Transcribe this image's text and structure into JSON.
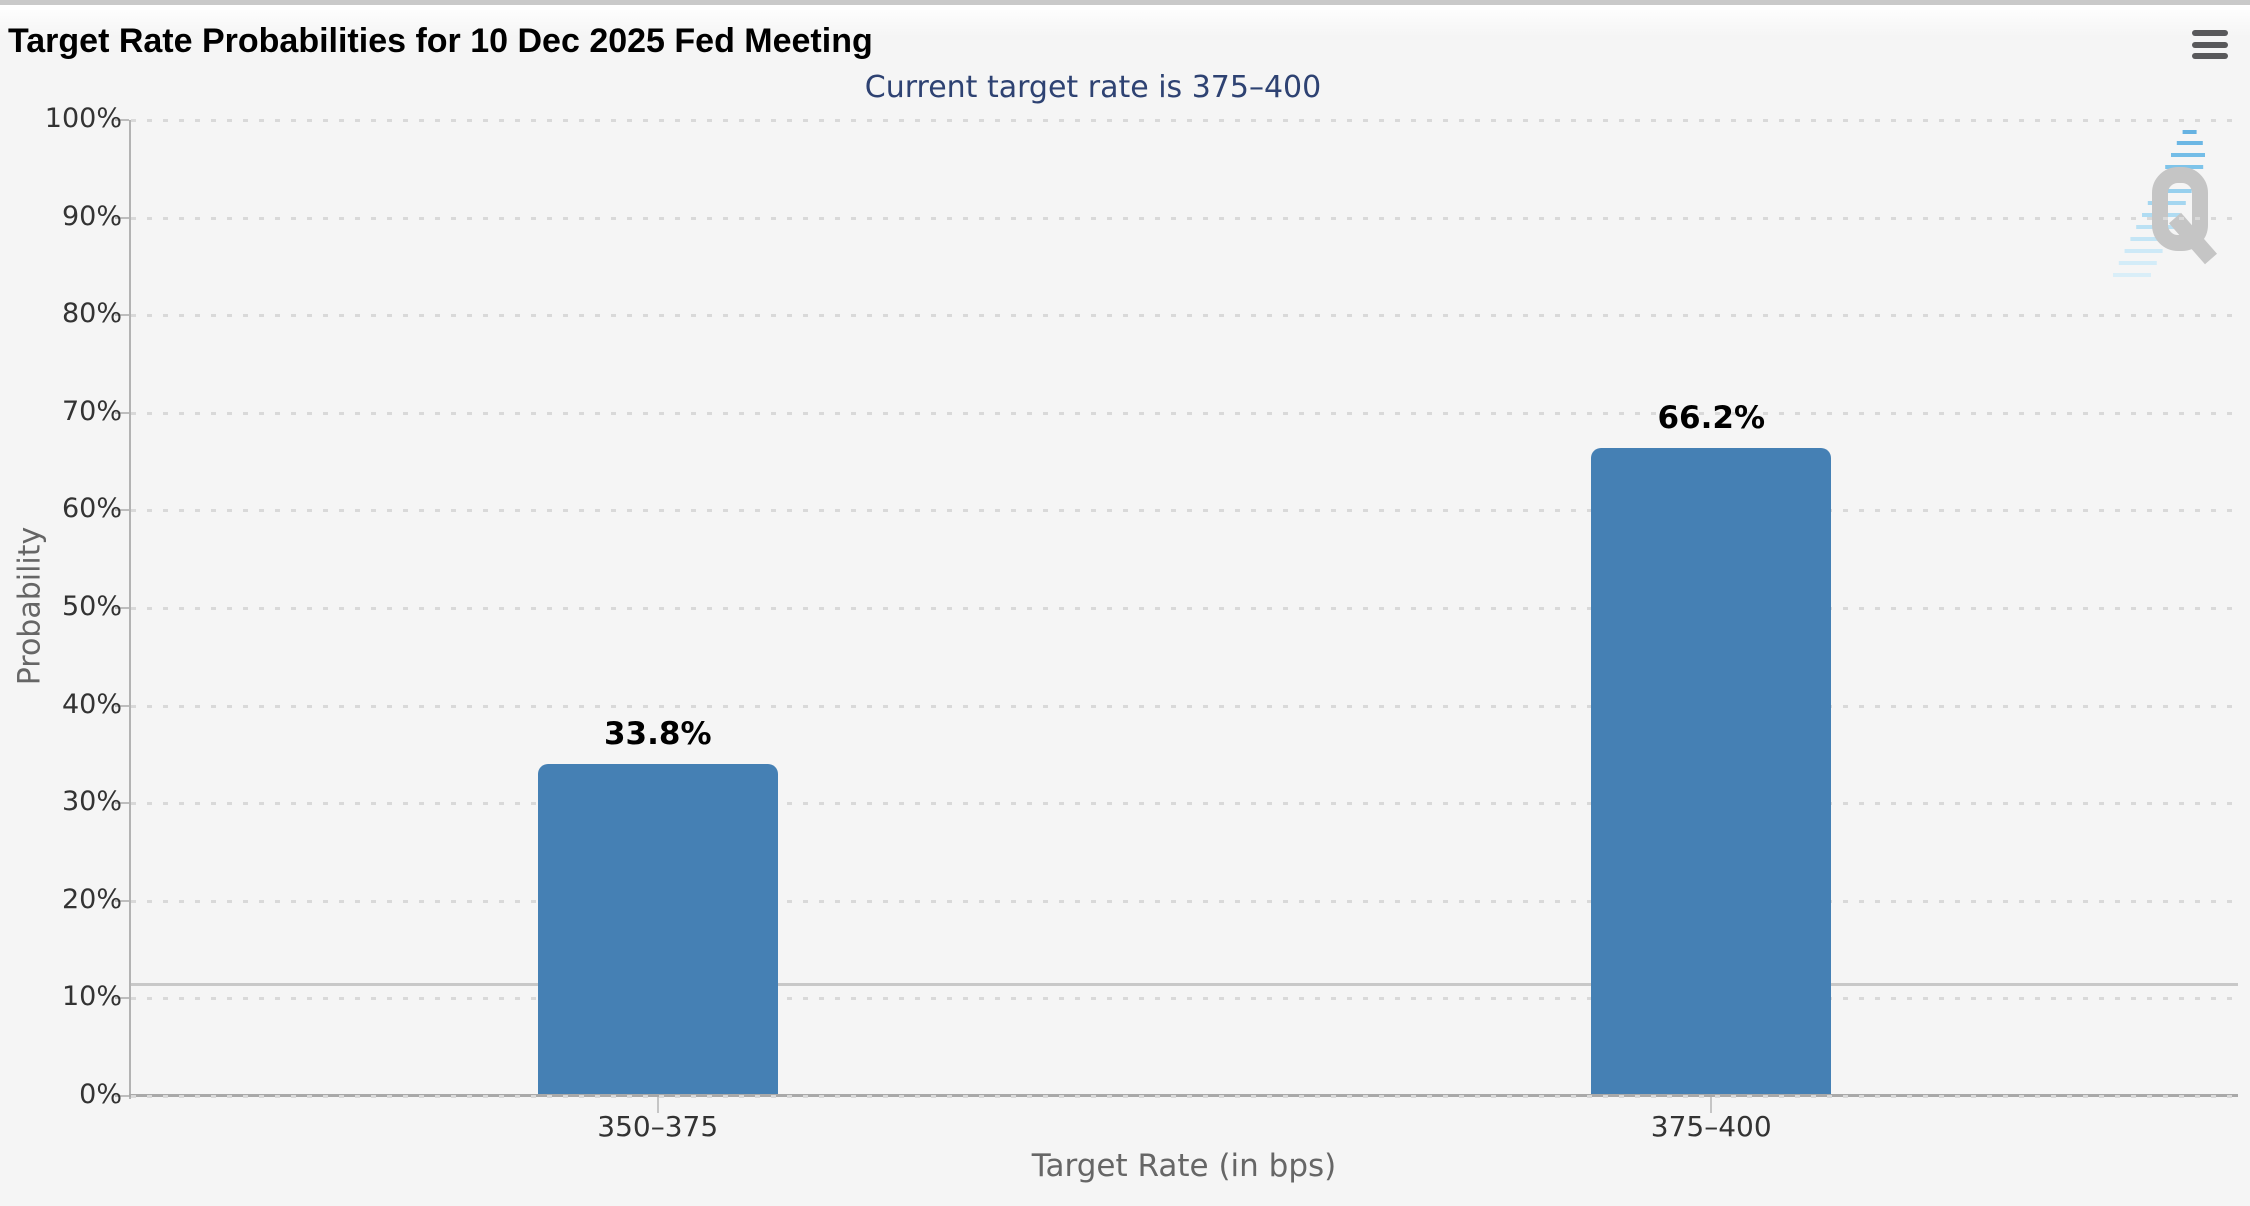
{
  "widget": {
    "menu_button": {
      "icon": "hamburger-icon"
    }
  },
  "chart_data": {
    "type": "bar",
    "title": "Target Rate Probabilities for 10 Dec 2025 Fed Meeting",
    "subtitle": "Current target rate is 375–400",
    "categories": [
      "350–375",
      "375–400"
    ],
    "values": [
      33.8,
      66.2
    ],
    "value_labels": [
      "33.8%",
      "66.2%"
    ],
    "xlabel": "Target Rate (in bps)",
    "ylabel": "Probability",
    "ylim": [
      0,
      100
    ],
    "ytick_step": 10,
    "ytick_labels": [
      "0%",
      "10%",
      "20%",
      "30%",
      "40%",
      "50%",
      "60%",
      "70%",
      "80%",
      "90%",
      "100%"
    ],
    "grid": "dotted horizontal gridlines",
    "legend": "none",
    "threshold_line_y": 11.5,
    "colors": {
      "bar": "#4580b4",
      "subtitle": "#2e4272",
      "axis": "#b0b0b0",
      "grid_dot": "#d9d9d9",
      "threshold_line": "#c8c8c8",
      "watermark_q": "#c5c5c5"
    },
    "watermark_letter": "Q"
  }
}
